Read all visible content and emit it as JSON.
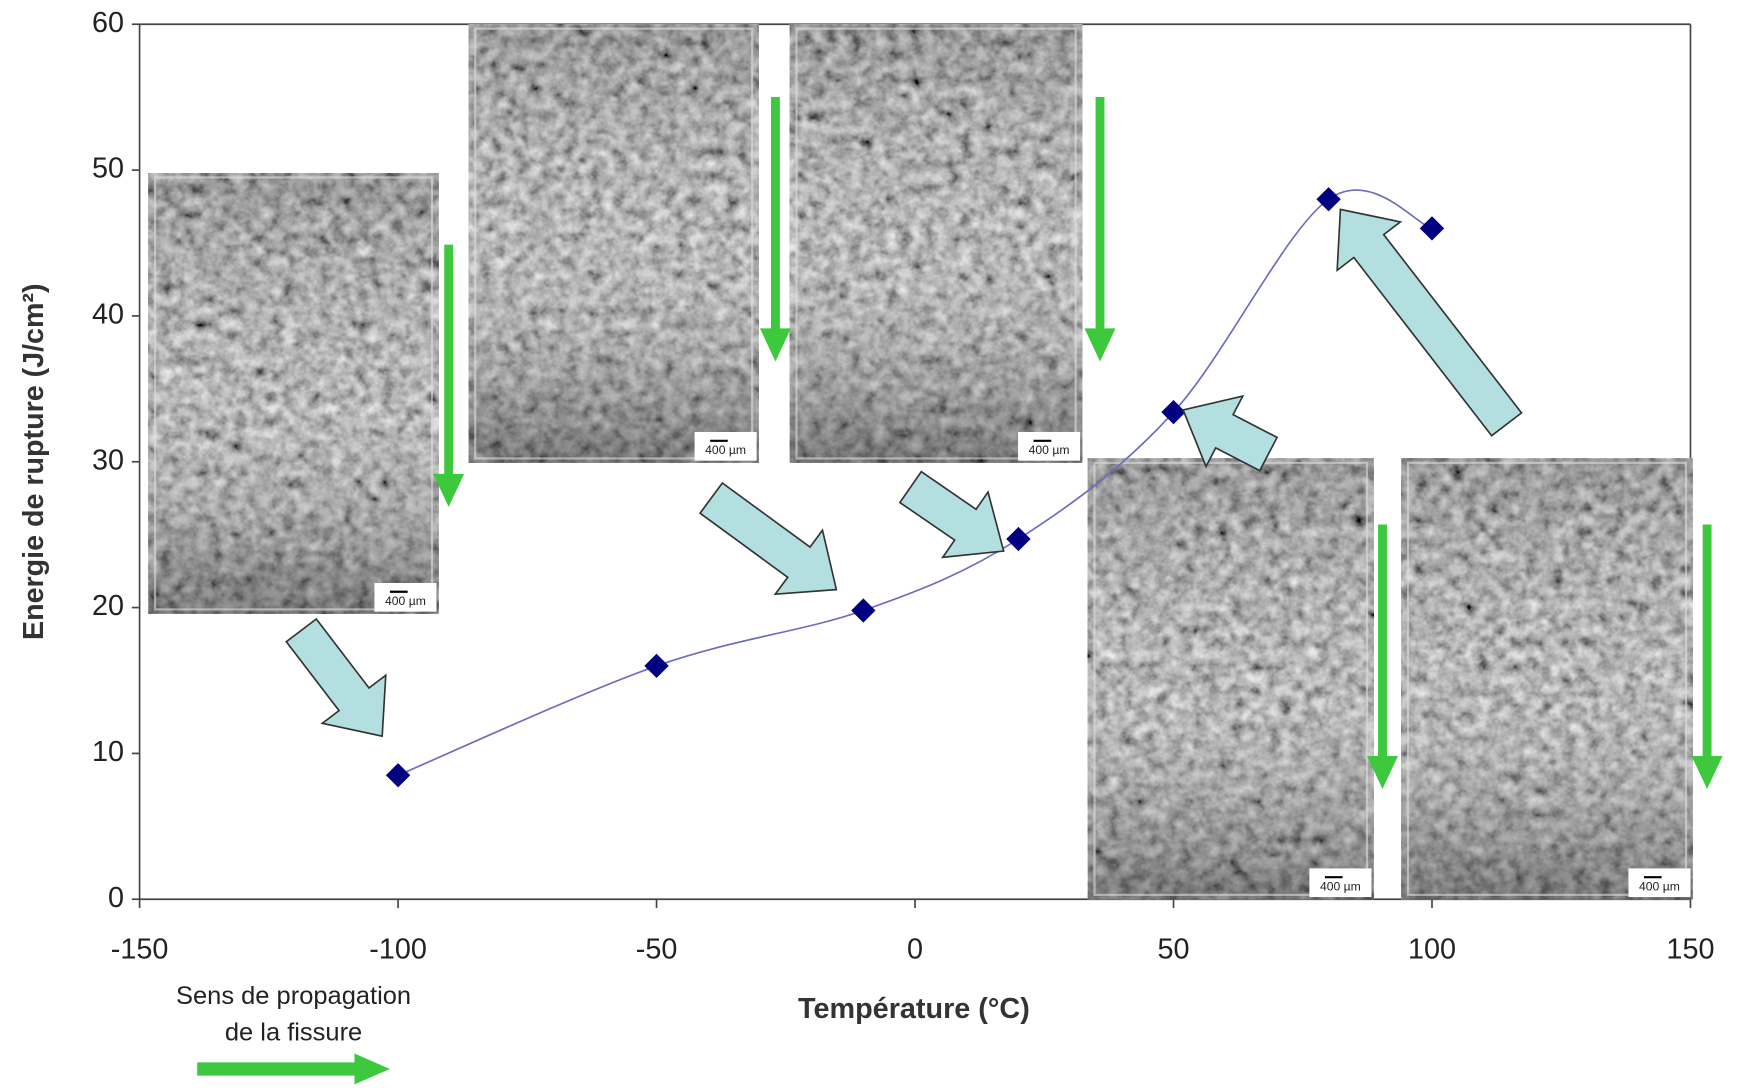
{
  "chart_data": {
    "type": "line",
    "x": [
      -100,
      -50,
      -10,
      20,
      50,
      80,
      100
    ],
    "values": [
      8.5,
      16,
      19.8,
      24.7,
      33.4,
      48,
      46
    ],
    "color": "#000080",
    "line_color": "#6b6bbf",
    "xlim": [
      -150,
      150
    ],
    "xticks": [
      -150,
      -100,
      -50,
      0,
      50,
      100,
      150
    ],
    "ylim": [
      0,
      60
    ],
    "yticks": [
      0,
      10,
      20,
      30,
      40,
      50,
      60
    ],
    "xlabel": "Température (°C)",
    "ylabel": "Energie de rupture (J/cm²)",
    "annotation": [
      "Sens de propagation",
      "de la fissure"
    ],
    "image_labels": [
      "400 µm",
      "400 µm",
      "400 µm",
      "400 µm",
      "400 µm"
    ]
  }
}
